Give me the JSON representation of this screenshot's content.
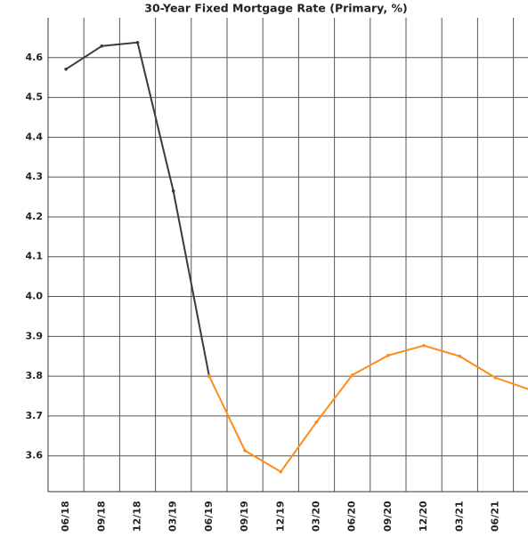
{
  "chart_data": {
    "type": "line",
    "title": "30-Year Fixed Mortgage Rate (Primary, %)",
    "categories": [
      "06/18",
      "09/18",
      "12/18",
      "03/19",
      "06/19",
      "09/19",
      "12/19",
      "03/20",
      "06/20",
      "09/20",
      "12/20",
      "03/21",
      "06/21",
      null
    ],
    "series": [
      {
        "color": "#3a3a3a",
        "values": [
          4.571,
          4.629,
          4.638,
          4.265,
          3.8,
          null,
          null,
          null,
          null,
          null,
          null,
          null,
          null,
          null
        ]
      },
      {
        "color": "#ff8c1a",
        "values": [
          null,
          null,
          null,
          null,
          3.8,
          3.613,
          3.56,
          3.685,
          3.803,
          3.852,
          3.877,
          3.85,
          3.796,
          3.765
        ]
      }
    ],
    "ylim": [
      3.51,
      4.7
    ],
    "yticks": [
      3.6,
      3.7,
      3.8,
      3.9,
      {
        "value": 4.0,
        "label": "4.0"
      },
      4.1,
      4.2,
      4.3,
      4.4,
      4.5,
      4.6
    ],
    "grid": true
  }
}
